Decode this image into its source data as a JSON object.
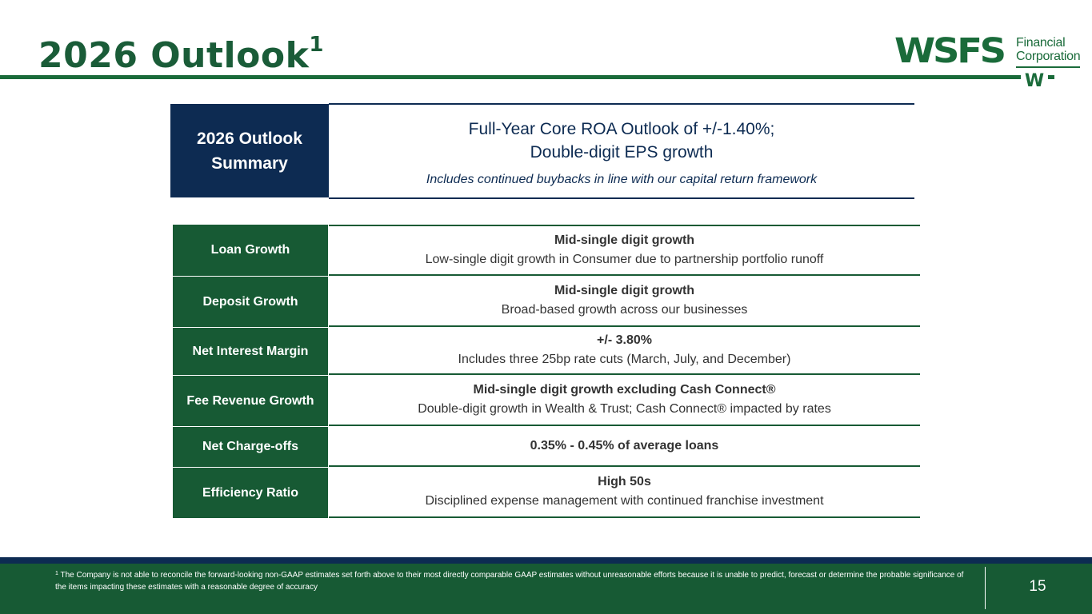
{
  "header": {
    "title": "2026 Outlook",
    "title_footnote_ref": "1"
  },
  "logo": {
    "wordmark": "WSFS",
    "line1": "Financial",
    "line2": "Corporation",
    "emblem": "W",
    "colors": {
      "brand_green": "#1a6b3a"
    }
  },
  "summary": {
    "label_line1": "2026 Outlook",
    "label_line2": "Summary",
    "main_line1": "Full-Year Core ROA Outlook of +/-1.40%;",
    "main_line2": "Double-digit EPS growth",
    "subtext": "Includes continued buybacks in line with our capital return framework",
    "colors": {
      "navy": "#0d2b52"
    }
  },
  "metrics": [
    {
      "label": "Loan Growth",
      "headline": "Mid-single digit growth",
      "detail": "Low-single digit growth in Consumer due to partnership portfolio runoff"
    },
    {
      "label": "Deposit Growth",
      "headline": "Mid-single digit growth",
      "detail": "Broad-based growth across our businesses"
    },
    {
      "label": "Net Interest Margin",
      "headline": "+/- 3.80%",
      "detail": "Includes three 25bp rate cuts (March, July, and December)"
    },
    {
      "label": "Fee Revenue Growth",
      "headline": "Mid-single digit growth excluding Cash Connect®",
      "detail": "Double-digit growth in Wealth & Trust; Cash Connect® impacted by rates"
    },
    {
      "label": "Net Charge-offs",
      "headline": "0.35% - 0.45% of average loans",
      "detail": ""
    },
    {
      "label": "Efficiency Ratio",
      "headline": "High 50s",
      "detail": "Disciplined expense management with continued franchise investment"
    }
  ],
  "footer": {
    "footnote_ref": "1",
    "footnote_text": "The Company is not able to reconcile the forward-looking non-GAAP estimates set forth above to their most directly comparable GAAP estimates without unreasonable efforts because it is unable to predict, forecast or determine the probable significance of the items impacting these estimates with a reasonable degree of accuracy",
    "page_number": "15"
  }
}
